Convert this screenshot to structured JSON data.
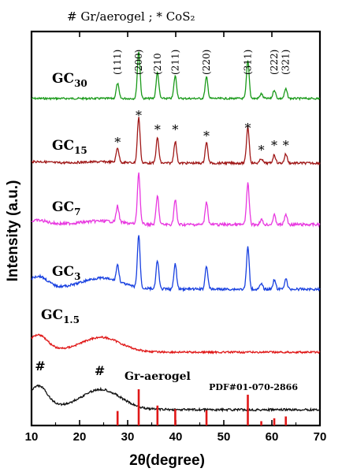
{
  "legend_text": "#  Gr/aerogel ; * CoS₂",
  "chart_data": {
    "type": "line",
    "xlabel": "2θ(degree)",
    "ylabel": "Intensity (a.u.)",
    "xlim": [
      10,
      70
    ],
    "xticks": [
      "10",
      "20",
      "30",
      "40",
      "50",
      "60",
      "70"
    ],
    "grid": false,
    "series": [
      {
        "name": "GC30",
        "label_main": "GC",
        "label_sub": "30",
        "color": "#1a9a1a"
      },
      {
        "name": "GC15",
        "label_main": "GC",
        "label_sub": "15",
        "color": "#a01818"
      },
      {
        "name": "GC7",
        "label_main": "GC",
        "label_sub": "7",
        "color": "#e838e0"
      },
      {
        "name": "GC3",
        "label_main": "GC",
        "label_sub": "3",
        "color": "#1840e0"
      },
      {
        "name": "GC1.5",
        "label_main": "GC",
        "label_sub": "1.5",
        "color": "#e01818"
      },
      {
        "name": "Gr-aerogel",
        "label_main": "Gr-aerogel",
        "label_sub": "",
        "color": "#111111"
      }
    ],
    "peaks_2theta": [
      27.9,
      32.3,
      36.2,
      39.9,
      46.4,
      55.0,
      57.8,
      60.5,
      62.9
    ],
    "hkl_labels": [
      {
        "text": "(111)",
        "x": 27.9
      },
      {
        "text": "(200)",
        "x": 32.3
      },
      {
        "text": "(210",
        "x": 36.2
      },
      {
        "text": "(211)",
        "x": 39.9
      },
      {
        "text": "(220)",
        "x": 46.4
      },
      {
        "text": "(311)",
        "x": 55.0
      },
      {
        "text": "(222)",
        "x": 60.5
      },
      {
        "text": "(321)",
        "x": 62.9
      }
    ],
    "cos2_markers": [
      {
        "text": "*",
        "x": 27.9
      },
      {
        "text": "*",
        "x": 32.3
      },
      {
        "text": "*",
        "x": 36.2
      },
      {
        "text": "*",
        "x": 39.9
      },
      {
        "text": "*",
        "x": 46.4
      },
      {
        "text": "*",
        "x": 55.0
      },
      {
        "text": "*",
        "x": 57.8
      },
      {
        "text": "*",
        "x": 60.5
      },
      {
        "text": "*",
        "x": 62.9
      }
    ],
    "gr_markers": [
      {
        "text": "#",
        "x": 11.8
      },
      {
        "text": "#",
        "x": 24.2
      }
    ],
    "reference": {
      "label": "PDF#01-070-2866",
      "color": "#e01818",
      "sticks": [
        {
          "x": 27.9,
          "rel": 0.4
        },
        {
          "x": 32.3,
          "rel": 1.0
        },
        {
          "x": 36.2,
          "rel": 0.55
        },
        {
          "x": 39.9,
          "rel": 0.45
        },
        {
          "x": 46.4,
          "rel": 0.42
        },
        {
          "x": 55.0,
          "rel": 0.85
        },
        {
          "x": 57.8,
          "rel": 0.12
        },
        {
          "x": 60.5,
          "rel": 0.2
        },
        {
          "x": 62.9,
          "rel": 0.25
        }
      ]
    }
  }
}
